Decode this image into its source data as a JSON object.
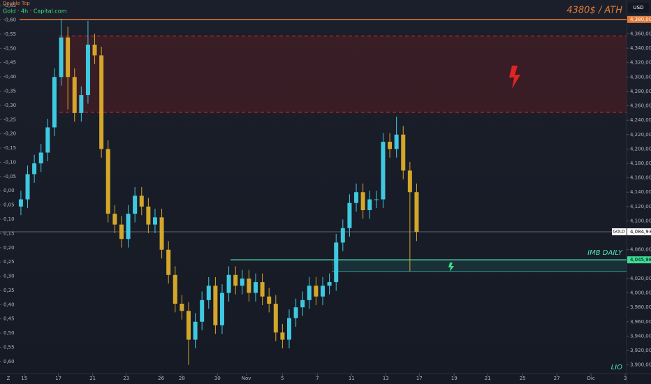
{
  "chart_data": {
    "type": "candlestick",
    "title": "Gold · 4h · Capital.com",
    "subtitle": "Double Top",
    "currency": "USD",
    "up_color": "#3fc9e0",
    "down_color": "#d4a62a",
    "candles": {
      "open": [
        4120,
        4130,
        4165,
        4180,
        4195,
        4230,
        4300,
        4355,
        4300,
        4250,
        4275,
        4345,
        4330,
        4200,
        4110,
        4095,
        4075,
        4110,
        4135,
        4120,
        4095,
        4105,
        4060,
        4025,
        3985,
        3975,
        3935,
        3960,
        3990,
        4010,
        3955,
        4000,
        4025,
        4010,
        4020,
        4000,
        4015,
        3995,
        3985,
        3945,
        3935,
        3965,
        3980,
        3990,
        4010,
        3995,
        4010,
        4015,
        4070,
        4090,
        4125,
        4140,
        4115,
        4130,
        4130,
        4210,
        4200,
        4220,
        4170,
        4140
      ],
      "high": [
        4142,
        4177,
        4192,
        4207,
        4242,
        4312,
        4381,
        4370,
        4312,
        4287,
        4378,
        4360,
        4342,
        4212,
        4122,
        4107,
        4122,
        4147,
        4147,
        4132,
        4117,
        4117,
        4072,
        4037,
        3997,
        3987,
        3972,
        4002,
        4022,
        4022,
        4012,
        4037,
        4037,
        4032,
        4032,
        4027,
        4027,
        4007,
        3997,
        3957,
        3977,
        3992,
        4002,
        4022,
        4022,
        4022,
        4027,
        4082,
        4102,
        4137,
        4152,
        4152,
        4142,
        4142,
        4222,
        4222,
        4245,
        4232,
        4182,
        4152
      ],
      "low": [
        4108,
        4118,
        4153,
        4168,
        4183,
        4218,
        4288,
        4255,
        4238,
        4238,
        4263,
        4318,
        4188,
        4098,
        4083,
        4063,
        4063,
        4098,
        4108,
        4083,
        4083,
        4048,
        4013,
        3973,
        3963,
        3900,
        3923,
        3948,
        3978,
        3943,
        3943,
        3988,
        3998,
        3998,
        3988,
        3988,
        3983,
        3973,
        3933,
        3923,
        3923,
        3953,
        3968,
        3978,
        3983,
        3983,
        3998,
        4003,
        4058,
        4078,
        4113,
        4103,
        4103,
        4118,
        4118,
        4188,
        4188,
        4158,
        4030,
        4072
      ],
      "close": [
        4130,
        4165,
        4180,
        4195,
        4230,
        4300,
        4355,
        4300,
        4250,
        4275,
        4345,
        4330,
        4200,
        4110,
        4095,
        4075,
        4110,
        4135,
        4120,
        4095,
        4105,
        4060,
        4025,
        3985,
        3975,
        3935,
        3960,
        3990,
        4010,
        3955,
        4000,
        4025,
        4010,
        4020,
        4000,
        4015,
        3995,
        3985,
        3945,
        3935,
        3965,
        3980,
        3990,
        4010,
        3995,
        4010,
        4015,
        4070,
        4090,
        4125,
        4140,
        4115,
        4130,
        4130,
        4210,
        4200,
        4220,
        4170,
        4140,
        4084.93
      ]
    },
    "xlim": [
      -0.2,
      90.3
    ],
    "xticks": [
      {
        "value": 0.5,
        "label": "15"
      },
      {
        "value": 5.6,
        "label": "17"
      },
      {
        "value": 10.7,
        "label": "21"
      },
      {
        "value": 15.7,
        "label": "23"
      },
      {
        "value": 20.9,
        "label": "26"
      },
      {
        "value": 24,
        "label": "28"
      },
      {
        "value": 29.3,
        "label": "30"
      },
      {
        "value": 33.6,
        "label": "Nov"
      },
      {
        "value": 39,
        "label": "5"
      },
      {
        "value": 44.2,
        "label": "7"
      },
      {
        "value": 49.3,
        "label": "11"
      },
      {
        "value": 54.4,
        "label": "13"
      },
      {
        "value": 59.4,
        "label": "17"
      },
      {
        "value": 64.6,
        "label": "19"
      },
      {
        "value": 69.6,
        "label": "21"
      },
      {
        "value": 74.8,
        "label": "25"
      },
      {
        "value": 79.9,
        "label": "27"
      },
      {
        "value": 85,
        "label": "Dic"
      },
      {
        "value": 90.1,
        "label": "3"
      }
    ],
    "ylim": [
      3888,
      4407
    ],
    "yticks": [
      {
        "value": 3900,
        "label": "3,900,00"
      },
      {
        "value": 3920,
        "label": "3,920,00"
      },
      {
        "value": 3940,
        "label": "3,940,00"
      },
      {
        "value": 3960,
        "label": "3,960,00"
      },
      {
        "value": 3980,
        "label": "3,980,00"
      },
      {
        "value": 4000,
        "label": "4,000,00"
      },
      {
        "value": 4020,
        "label": "4,020,00"
      },
      {
        "value": 4060,
        "label": "4,060,00"
      },
      {
        "value": 4100,
        "label": "4,100,00"
      },
      {
        "value": 4120,
        "label": "4,120,00"
      },
      {
        "value": 4140,
        "label": "4,140,00"
      },
      {
        "value": 4160,
        "label": "4,160,00"
      },
      {
        "value": 4180,
        "label": "4,180,00"
      },
      {
        "value": 4200,
        "label": "4,200,00"
      },
      {
        "value": 4220,
        "label": "4,220,00"
      },
      {
        "value": 4240,
        "label": "4,240,00"
      },
      {
        "value": 4260,
        "label": "4,260,00"
      },
      {
        "value": 4280,
        "label": "4,280,00"
      },
      {
        "value": 4300,
        "label": "4,300,00"
      },
      {
        "value": 4320,
        "label": "4,320,00"
      },
      {
        "value": 4340,
        "label": "4,340,00"
      },
      {
        "value": 4360,
        "label": "4,360,00"
      }
    ],
    "y2lim": [
      0.642,
      -0.67
    ],
    "y2ticks": [
      {
        "value": -0.65,
        "label": "-0,65"
      },
      {
        "value": -0.6,
        "label": "-0,60"
      },
      {
        "value": -0.55,
        "label": "-0,55"
      },
      {
        "value": -0.5,
        "label": "-0,50"
      },
      {
        "value": -0.45,
        "label": "-0,45"
      },
      {
        "value": -0.4,
        "label": "-0,40"
      },
      {
        "value": -0.35,
        "label": "-0,35"
      },
      {
        "value": -0.3,
        "label": "-0,30"
      },
      {
        "value": -0.25,
        "label": "-0,25"
      },
      {
        "value": -0.2,
        "label": "-0,20"
      },
      {
        "value": -0.15,
        "label": "-0,15"
      },
      {
        "value": -0.1,
        "label": "-0,10"
      },
      {
        "value": -0.05,
        "label": "-0,05"
      },
      {
        "value": 0,
        "label": "0,00"
      },
      {
        "value": 0.05,
        "label": "0,05"
      },
      {
        "value": 0.1,
        "label": "0,10"
      },
      {
        "value": 0.15,
        "label": "0,15"
      },
      {
        "value": 0.2,
        "label": "0,20"
      },
      {
        "value": 0.25,
        "label": "0,25"
      },
      {
        "value": 0.3,
        "label": "0,30"
      },
      {
        "value": 0.35,
        "label": "0,35"
      },
      {
        "value": 0.4,
        "label": "0,40"
      },
      {
        "value": 0.45,
        "label": "0,45"
      },
      {
        "value": 0.5,
        "label": "0,50"
      },
      {
        "value": 0.55,
        "label": "0,55"
      },
      {
        "value": 0.6,
        "label": "0,60"
      }
    ],
    "ath": {
      "value": 4380,
      "label": "4380$ / ATH",
      "price_label": "4,380,00"
    },
    "zone": [
      4251,
      4357
    ],
    "imb": {
      "value": 4045.98,
      "low": 4030,
      "label": "IMB DAILY",
      "price_label": "4,045,98"
    },
    "last": {
      "value": 4084.93,
      "name": "GOLD",
      "price_label": "4,084,93"
    },
    "note": "LIO",
    "corner": "Z"
  }
}
